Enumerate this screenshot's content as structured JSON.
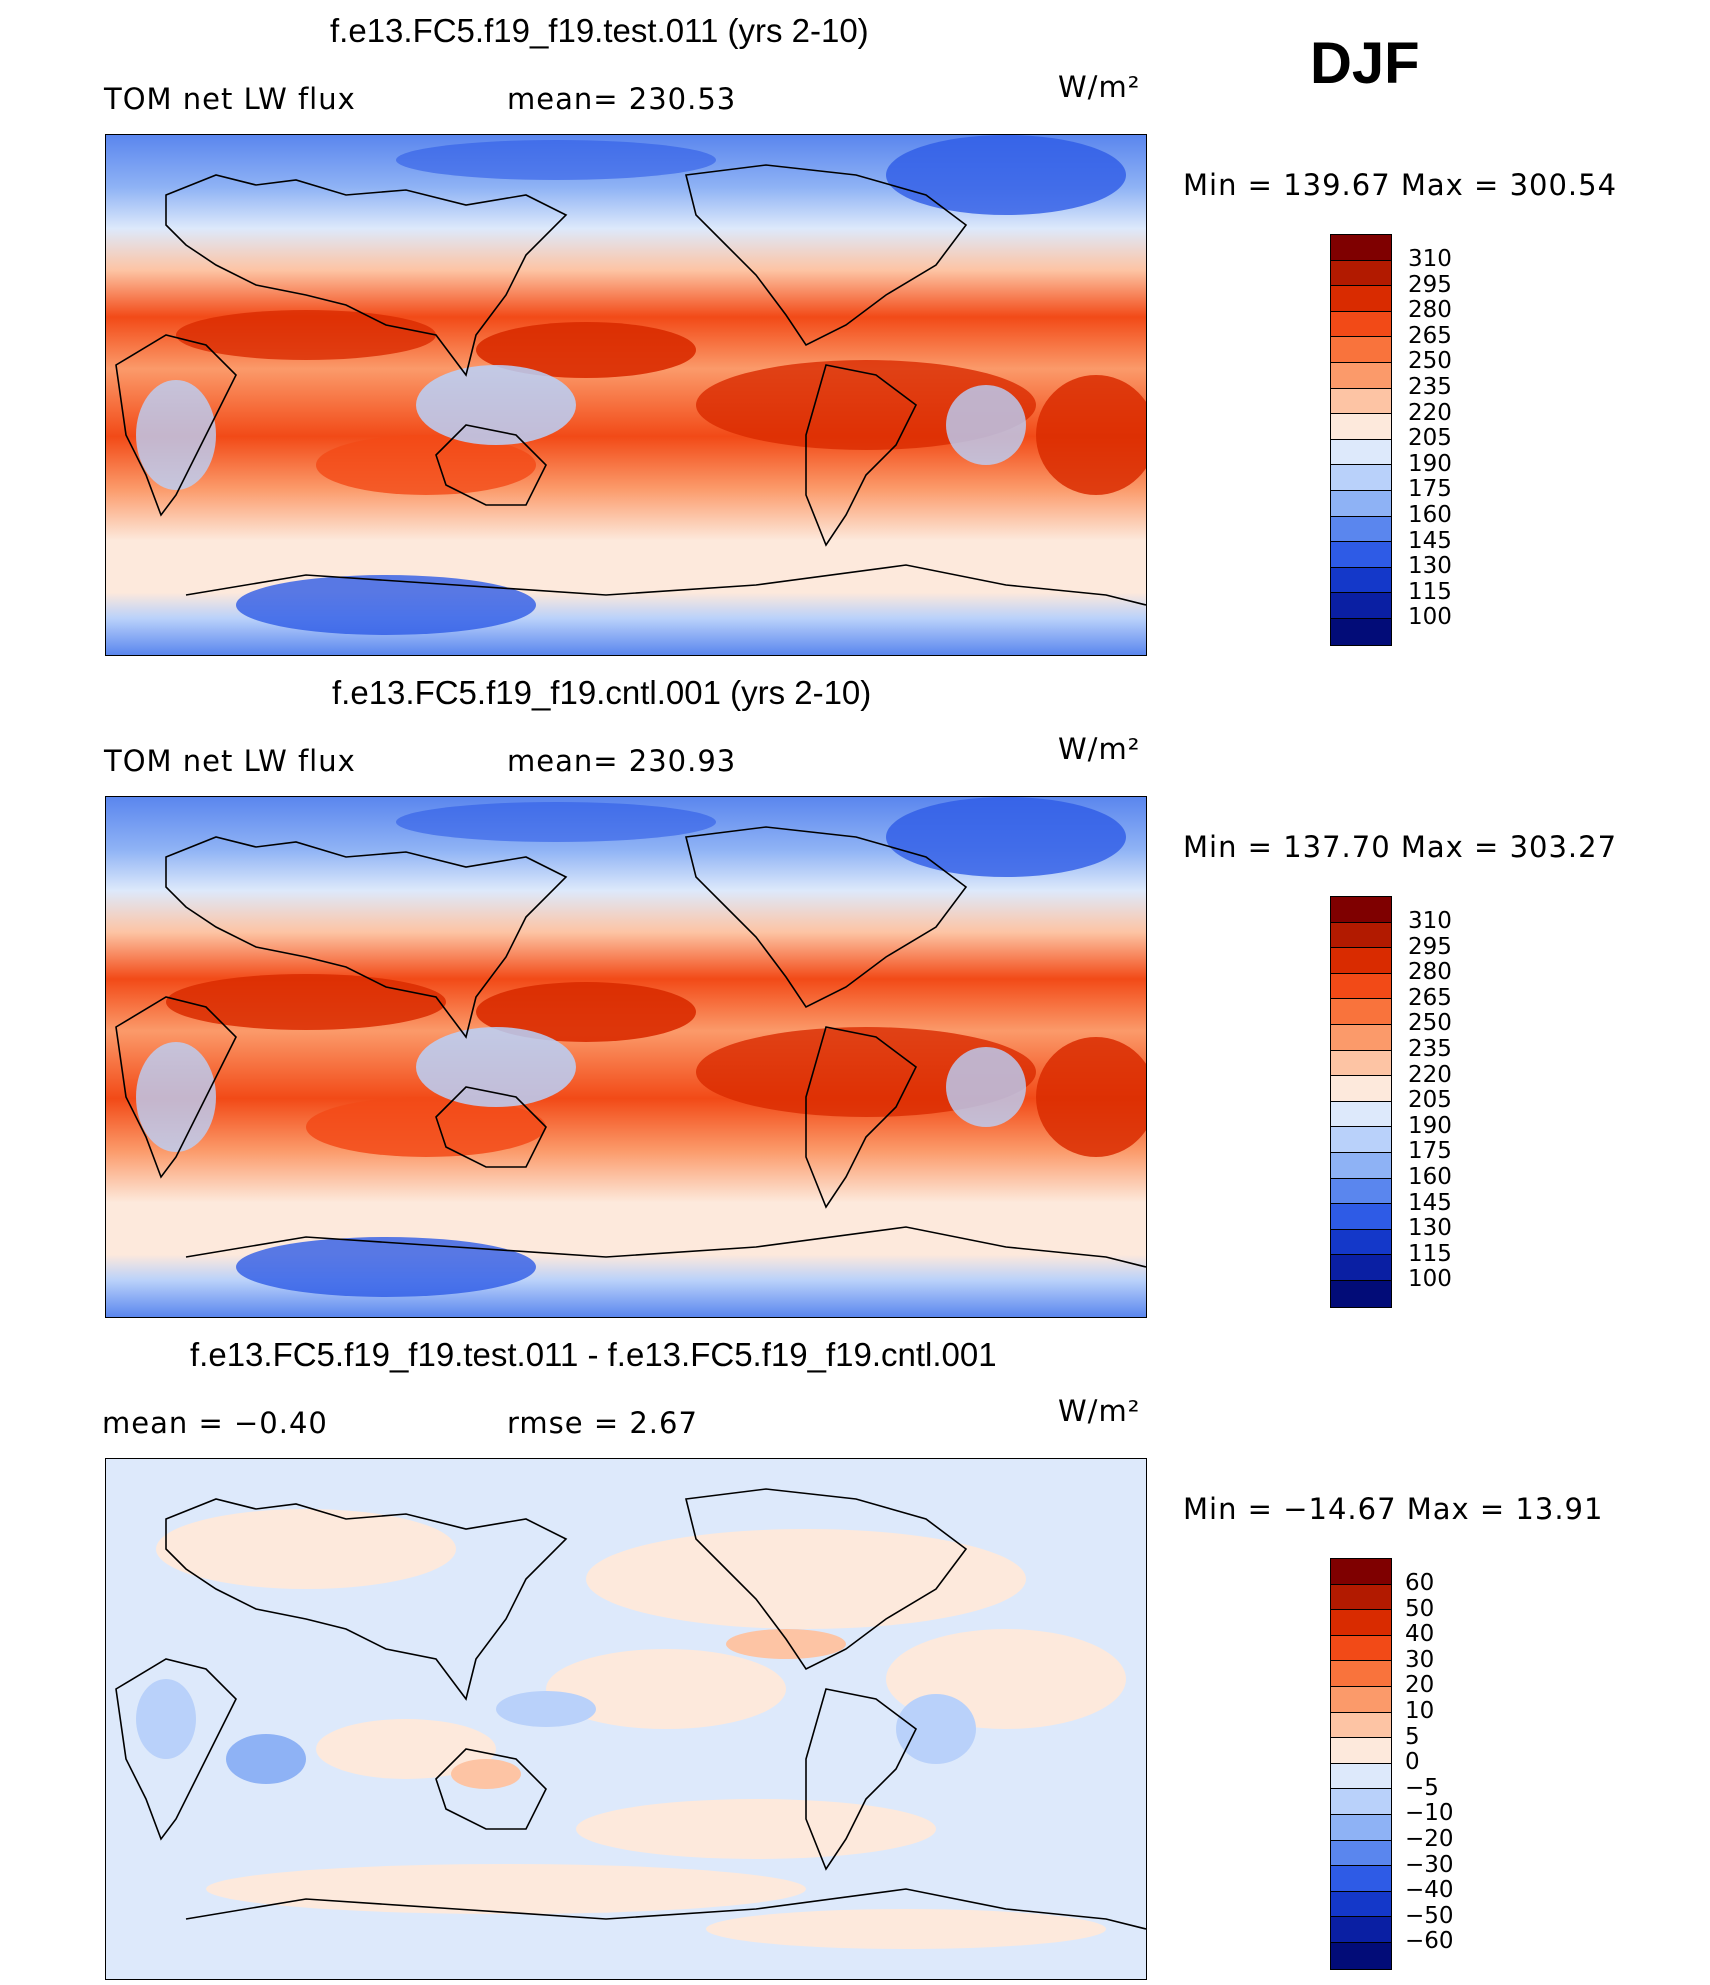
{
  "season": "DJF",
  "panels": [
    {
      "title": "f.e13.FC5.f19_f19.test.011 (yrs 2-10)",
      "left_label": "TOM net LW flux",
      "mean_label": "mean= 230.53",
      "units": "W/m²",
      "range_label": "Min = 139.67 Max = 300.54",
      "levels": [
        "310",
        "295",
        "280",
        "265",
        "250",
        "235",
        "220",
        "205",
        "190",
        "175",
        "160",
        "145",
        "130",
        "115",
        "100"
      ]
    },
    {
      "title": "f.e13.FC5.f19_f19.cntl.001 (yrs 2-10)",
      "left_label": "TOM net LW flux",
      "mean_label": "mean= 230.93",
      "units": "W/m²",
      "range_label": "Min = 137.70 Max = 303.27",
      "levels": [
        "310",
        "295",
        "280",
        "265",
        "250",
        "235",
        "220",
        "205",
        "190",
        "175",
        "160",
        "145",
        "130",
        "115",
        "100"
      ]
    },
    {
      "title": "f.e13.FC5.f19_f19.test.011 - f.e13.FC5.f19_f19.cntl.001",
      "left_label": "mean =   −0.40",
      "mean_label": "rmse =    2.67",
      "units": "W/m²",
      "range_label": "Min = −14.67 Max =   13.91",
      "levels": [
        "60",
        "50",
        "40",
        "30",
        "20",
        "10",
        "5",
        "0",
        "−5",
        "−10",
        "−20",
        "−30",
        "−40",
        "−50",
        "−60"
      ]
    }
  ],
  "colors": {
    "colorbar": [
      "#7f0000",
      "#b21a00",
      "#d92b00",
      "#f24a17",
      "#f9733c",
      "#fb9a6a",
      "#fdc4a4",
      "#fde9dc",
      "#dde9fb",
      "#b9d1fa",
      "#8eb2f5",
      "#5a86ee",
      "#2e5be6",
      "#1438c9",
      "#0a1fa3",
      "#020c78"
    ],
    "ocean_warm": "#e8461a",
    "coast": "#000000"
  }
}
